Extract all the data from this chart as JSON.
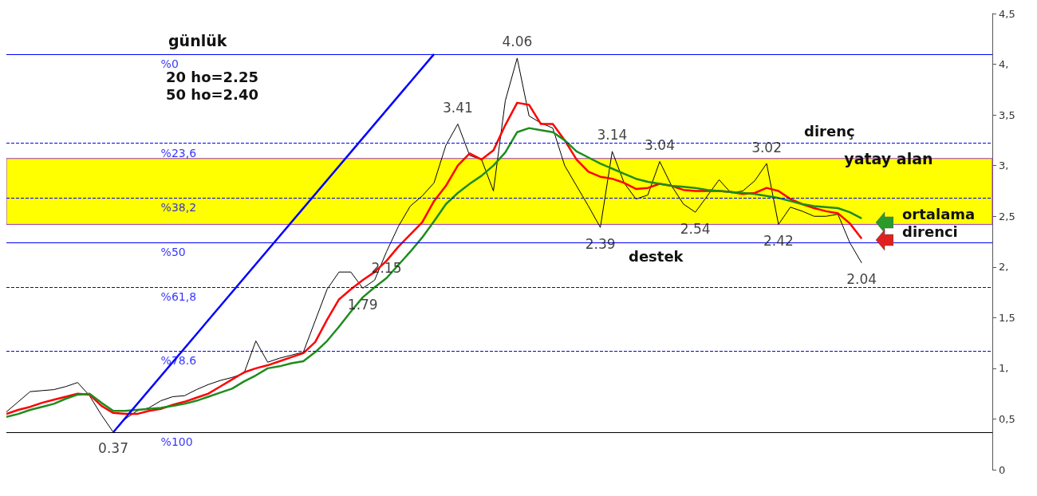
{
  "chart_data": {
    "type": "line",
    "title": "günlük",
    "categories": [
      null,
      null,
      null,
      null,
      null,
      null,
      null,
      null,
      null,
      null,
      null,
      null,
      null,
      null,
      null,
      null,
      null,
      null,
      null,
      null,
      null,
      null,
      null,
      null,
      null,
      null,
      null,
      null,
      null,
      null,
      null,
      null,
      null,
      null,
      null,
      null,
      null,
      null,
      null,
      null,
      null,
      null,
      null,
      null,
      null,
      null,
      null,
      null,
      null,
      null,
      null,
      null,
      null,
      null,
      null,
      null,
      null,
      null,
      null,
      null,
      null,
      null,
      null,
      null,
      null,
      null,
      null,
      null,
      null,
      null,
      null,
      null,
      null,
      null,
      null,
      null,
      null,
      null,
      null,
      null,
      null,
      null,
      null,
      null
    ],
    "ylim": [
      0,
      4.5
    ],
    "yticks": [
      {
        "value": 0,
        "label": "0"
      },
      {
        "value": 0.5,
        "label": "0,5"
      },
      {
        "value": 1,
        "label": "1,"
      },
      {
        "value": 1.5,
        "label": "1,5"
      },
      {
        "value": 2,
        "label": "2,"
      },
      {
        "value": 2.5,
        "label": "2,5"
      },
      {
        "value": 3,
        "label": "3,"
      },
      {
        "value": 3.5,
        "label": "3,5"
      },
      {
        "value": 4,
        "label": "4,"
      },
      {
        "value": 4.5,
        "label": "4,5"
      }
    ],
    "tick_labels": "y",
    "grid": false,
    "marker": "none",
    "line_style": "solid",
    "series": [
      {
        "color": "#000000",
        "values": [
          0.57,
          0.67,
          0.77,
          0.78,
          0.79,
          0.82,
          0.86,
          0.73,
          0.54,
          0.37,
          0.5,
          0.58,
          0.61,
          0.68,
          0.72,
          0.73,
          0.79,
          0.84,
          0.88,
          0.91,
          0.95,
          1.27,
          1.06,
          1.1,
          1.13,
          1.16,
          1.47,
          1.78,
          1.95,
          1.95,
          1.79,
          1.87,
          2.15,
          2.4,
          2.6,
          2.7,
          2.83,
          3.2,
          3.41,
          3.1,
          3.06,
          2.75,
          3.64,
          4.06,
          3.49,
          3.42,
          3.37,
          3.0,
          2.8,
          2.6,
          2.39,
          3.14,
          2.83,
          2.67,
          2.71,
          3.04,
          2.8,
          2.62,
          2.54,
          2.7,
          2.86,
          2.73,
          2.75,
          2.85,
          3.02,
          2.42,
          2.59,
          2.55,
          2.5,
          2.5,
          2.52,
          2.24,
          2.04,
          null,
          null,
          null,
          null,
          null,
          null,
          null,
          null,
          null,
          null,
          null
        ]
      },
      {
        "color": "#ff0000",
        "values": [
          0.55,
          0.59,
          0.62,
          0.66,
          0.69,
          0.72,
          0.75,
          0.74,
          0.63,
          0.56,
          0.55,
          0.55,
          0.58,
          0.6,
          0.64,
          0.67,
          0.71,
          0.75,
          0.82,
          0.89,
          0.96,
          1.0,
          1.03,
          1.07,
          1.11,
          1.15,
          1.26,
          1.48,
          1.68,
          1.78,
          1.87,
          1.95,
          2.06,
          2.2,
          2.32,
          2.44,
          2.65,
          2.8,
          3.0,
          3.12,
          3.06,
          3.15,
          3.4,
          3.62,
          3.6,
          3.41,
          3.41,
          3.25,
          3.06,
          2.94,
          2.89,
          2.87,
          2.83,
          2.77,
          2.78,
          2.82,
          2.8,
          2.76,
          2.75,
          2.75,
          2.75,
          2.74,
          2.72,
          2.73,
          2.78,
          2.75,
          2.67,
          2.62,
          2.58,
          2.55,
          2.53,
          2.43,
          2.28,
          null,
          null,
          null,
          null,
          null,
          null,
          null,
          null,
          null,
          null,
          null
        ]
      },
      {
        "color": "#1e8c1e",
        "values": [
          0.52,
          0.55,
          0.59,
          0.62,
          0.65,
          0.7,
          0.74,
          0.75,
          0.66,
          0.58,
          0.58,
          0.59,
          0.6,
          0.61,
          0.63,
          0.65,
          0.68,
          0.72,
          0.76,
          0.8,
          0.87,
          0.93,
          1.0,
          1.02,
          1.05,
          1.07,
          1.16,
          1.27,
          1.41,
          1.56,
          1.7,
          1.8,
          1.89,
          2.02,
          2.15,
          2.29,
          2.45,
          2.62,
          2.73,
          2.82,
          2.9,
          3.0,
          3.13,
          3.33,
          3.37,
          3.35,
          3.33,
          3.25,
          3.14,
          3.08,
          3.02,
          2.97,
          2.92,
          2.87,
          2.84,
          2.82,
          2.8,
          2.79,
          2.78,
          2.76,
          2.75,
          2.74,
          2.73,
          2.72,
          2.7,
          2.68,
          2.65,
          2.62,
          2.6,
          2.59,
          2.58,
          2.54,
          2.48,
          null,
          null,
          null,
          null,
          null,
          null,
          null,
          null,
          null,
          null,
          null
        ]
      },
      {
        "color": "#0000ff",
        "values": [
          null,
          null,
          null,
          null,
          null,
          null,
          null,
          null,
          null,
          0.37,
          null,
          null,
          null,
          null,
          null,
          null,
          null,
          null,
          null,
          null,
          null,
          null,
          null,
          null,
          null,
          null,
          null,
          null,
          null,
          null,
          null,
          null,
          null,
          null,
          null,
          null,
          4.1,
          null,
          null,
          null,
          null,
          null,
          null,
          null,
          null,
          null,
          null,
          null,
          null,
          null,
          null,
          null,
          null,
          null,
          null,
          null,
          null,
          null,
          null,
          null,
          null,
          null,
          null,
          null,
          null,
          null,
          null,
          null,
          null,
          null,
          null,
          null,
          null,
          null,
          null,
          null,
          null,
          null,
          null,
          null,
          null,
          null,
          null,
          null
        ]
      }
    ],
    "ref_lines": [
      {
        "axis": "y",
        "value": 4.1,
        "color": "#0000ff",
        "line_style": "solid"
      },
      {
        "axis": "y",
        "value": 3.22,
        "color": "#0000ff",
        "line_style": "dashed"
      },
      {
        "axis": "y",
        "value": 2.68,
        "color": "#0000ff",
        "line_style": "dashed"
      },
      {
        "axis": "y",
        "value": 2.24,
        "color": "#0000ff",
        "line_style": "solid"
      },
      {
        "axis": "y",
        "value": 1.8,
        "color": "#0000ff",
        "line_style": "dashed"
      },
      {
        "axis": "y",
        "value": 1.17,
        "color": "#0000ff",
        "line_style": "dashed"
      },
      {
        "axis": "y",
        "value": 0.37,
        "color": "#000000",
        "line_style": "solid"
      }
    ],
    "bands": [
      {
        "axis": "y",
        "from": 2.42,
        "to": 3.07,
        "label": "yatay alan",
        "color": "#ffff00"
      }
    ],
    "annotations": [
      {
        "text": "%0",
        "y": 4.1
      },
      {
        "text": "%23,6",
        "y": 3.22
      },
      {
        "text": "%38,2",
        "y": 2.68
      },
      {
        "text": "%50",
        "y": 2.24
      },
      {
        "text": "%61,8",
        "y": 1.8
      },
      {
        "text": "%78.6",
        "y": 1.17
      },
      {
        "text": "%100",
        "y": 0.37
      },
      {
        "text": "0.37",
        "y": 0.37
      },
      {
        "text": "4.06",
        "y": 4.06
      },
      {
        "text": "3.41",
        "y": 3.41
      },
      {
        "text": "2.15",
        "y": 2.15
      },
      {
        "text": "1.79",
        "y": 1.79
      },
      {
        "text": "3.14",
        "y": 3.14
      },
      {
        "text": "3.04",
        "y": 3.04
      },
      {
        "text": "3.02",
        "y": 3.02
      },
      {
        "text": "2.39",
        "y": 2.39
      },
      {
        "text": "2.54",
        "y": 2.54
      },
      {
        "text": "2.42",
        "y": 2.42
      },
      {
        "text": "2.04",
        "y": 2.04
      },
      "20 ho=2.25",
      "50 ho=2.40",
      "direnç",
      "destek",
      "ortalama direnci"
    ]
  }
}
